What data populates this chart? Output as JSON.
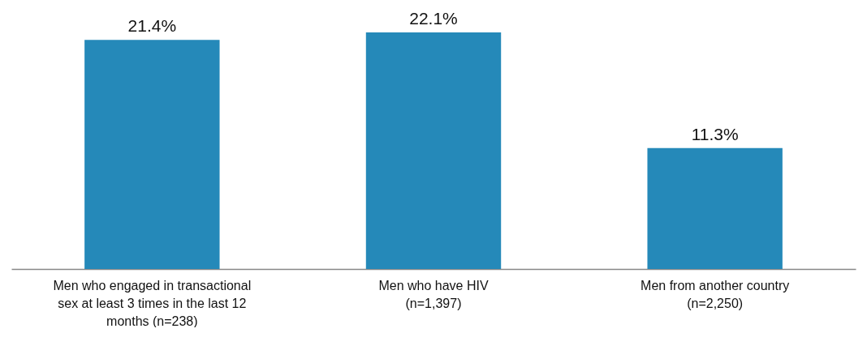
{
  "chart_data": {
    "type": "bar",
    "categories": [
      "Men who engaged in transactional sex at least 3 times in the last 12 months (n=238)",
      "Men who have HIV (n=1,397)",
      "Men from another country (n=2,250)"
    ],
    "values": [
      21.4,
      22.1,
      11.3
    ],
    "value_labels": [
      "21.4%",
      "22.1%",
      "11.3%"
    ],
    "color": "#2589b9"
  }
}
